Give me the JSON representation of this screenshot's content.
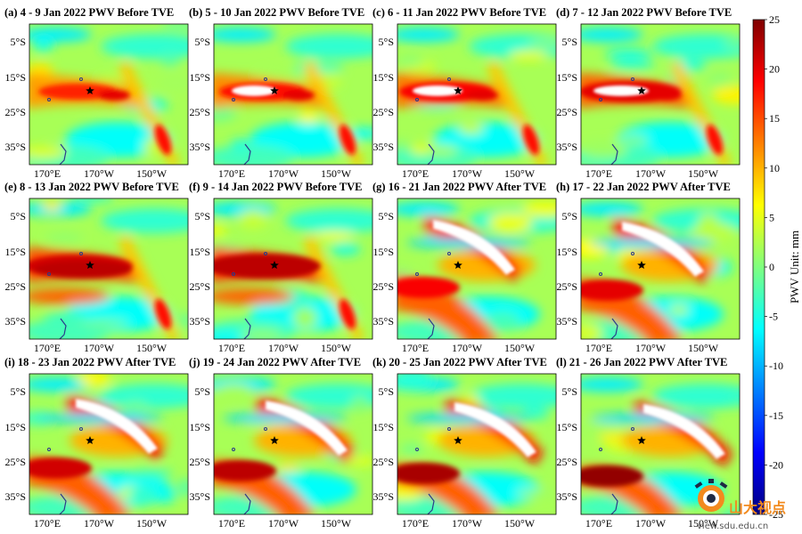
{
  "chart_data": {
    "type": "heatmap",
    "variable": "PWV",
    "unit_label": "PWV  Unit: mm",
    "colorbar": {
      "range": [
        -25,
        25
      ],
      "ticks": [
        25,
        20,
        15,
        10,
        5,
        0,
        -5,
        -10,
        -15,
        -20,
        -25
      ],
      "colormap": [
        "#00007f",
        "#0000ff",
        "#007fff",
        "#00ffff",
        "#7fff7f",
        "#ffff00",
        "#ff7f00",
        "#ff0000",
        "#7f0000"
      ]
    },
    "x_tick_labels": [
      "170°E",
      "170°W",
      "150°W"
    ],
    "y_tick_labels": [
      "5°S",
      "15°S",
      "25°S",
      "35°S"
    ],
    "event_marker": "star",
    "panels": [
      {
        "title": "(a) 4 - 9 Jan 2022 PWV Before TVE",
        "phase": "before",
        "day": 0
      },
      {
        "title": "(b) 5 - 10 Jan 2022 PWV Before TVE",
        "phase": "before",
        "day": 1
      },
      {
        "title": "(c) 6 - 11 Jan 2022 PWV Before TVE",
        "phase": "before",
        "day": 2
      },
      {
        "title": "(d) 7 - 12 Jan 2022 PWV Before TVE",
        "phase": "before",
        "day": 3
      },
      {
        "title": "(e) 8 - 13 Jan 2022 PWV Before TVE",
        "phase": "before",
        "day": 4
      },
      {
        "title": "(f) 9 - 14 Jan 2022 PWV Before TVE",
        "phase": "before",
        "day": 5
      },
      {
        "title": "(g) 16 - 21 Jan 2022 PWV After TVE",
        "phase": "after",
        "day": 0
      },
      {
        "title": "(h) 17 - 22 Jan 2022 PWV After TVE",
        "phase": "after",
        "day": 1
      },
      {
        "title": "(i) 18 - 23 Jan 2022 PWV After TVE",
        "phase": "after",
        "day": 2
      },
      {
        "title": "(j) 19 - 24 Jan 2022 PWV After TVE",
        "phase": "after",
        "day": 3
      },
      {
        "title": "(k) 20 - 25 Jan 2022 PWV After TVE",
        "phase": "after",
        "day": 4
      },
      {
        "title": "(l) 21 - 26 Jan 2022 PWV After TVE",
        "phase": "after",
        "day": 5
      }
    ]
  },
  "watermark": {
    "name": "山大视点",
    "url": "view.sdu.edu.cn"
  }
}
